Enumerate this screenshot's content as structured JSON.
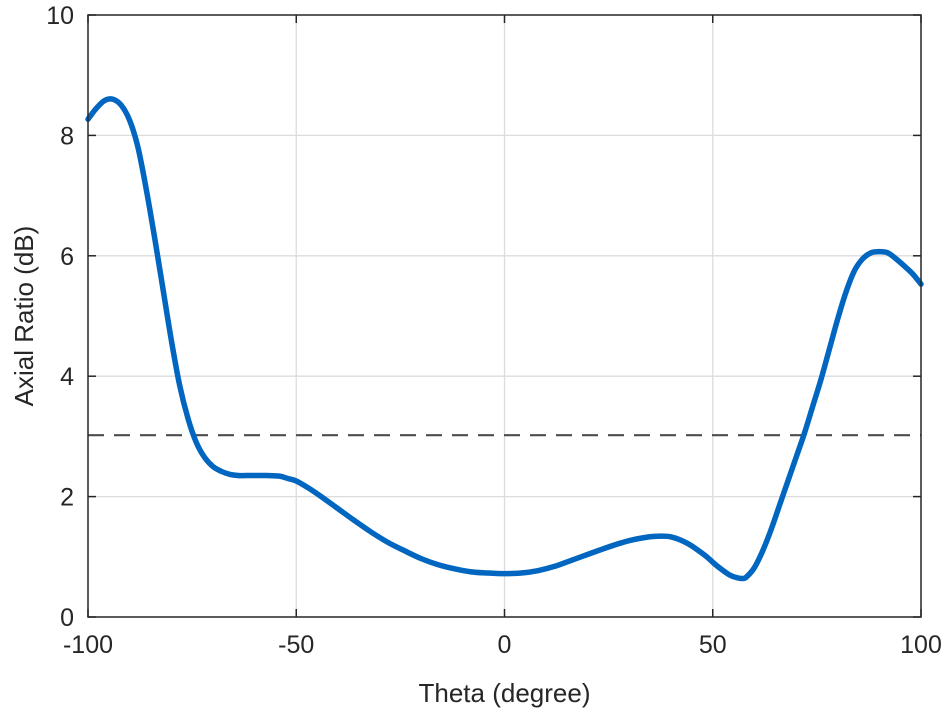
{
  "chart_data": {
    "type": "line",
    "title": "",
    "xlabel": "Theta (degree)",
    "ylabel": "Axial Ratio (dB)",
    "xlim": [
      -100,
      100
    ],
    "ylim": [
      0,
      10
    ],
    "xticks": [
      -100,
      -50,
      0,
      50,
      100
    ],
    "yticks": [
      0,
      2,
      4,
      6,
      8,
      10
    ],
    "xtick_labels": [
      "-100",
      "-50",
      "0",
      "50",
      "100"
    ],
    "ytick_labels": [
      "0",
      "2",
      "4",
      "6",
      "8",
      "10"
    ],
    "grid": true,
    "legend": "none",
    "series": [
      {
        "color": "#0066c0",
        "style": "solid",
        "x": [
          -100,
          -98,
          -96,
          -94,
          -92,
          -90,
          -88,
          -86,
          -84,
          -82,
          -80,
          -78,
          -76,
          -74,
          -72,
          -70,
          -68,
          -66,
          -64,
          -62,
          -60,
          -57,
          -54,
          -52,
          -50,
          -47,
          -44,
          -40,
          -36,
          -32,
          -28,
          -24,
          -20,
          -16,
          -12,
          -8,
          -4,
          0,
          4,
          8,
          12,
          16,
          20,
          24,
          28,
          32,
          36,
          40,
          44,
          48,
          51,
          54,
          56,
          57,
          58,
          60,
          62,
          64,
          66,
          68,
          70,
          72,
          74,
          76,
          78,
          80,
          82,
          84,
          86,
          88,
          90,
          92,
          94,
          96,
          98,
          100
        ],
        "y": [
          8.27,
          8.45,
          8.58,
          8.6,
          8.5,
          8.25,
          7.8,
          7.1,
          6.3,
          5.45,
          4.6,
          3.85,
          3.3,
          2.9,
          2.65,
          2.5,
          2.42,
          2.37,
          2.35,
          2.35,
          2.35,
          2.35,
          2.34,
          2.3,
          2.26,
          2.14,
          2.0,
          1.8,
          1.6,
          1.41,
          1.24,
          1.1,
          0.97,
          0.87,
          0.8,
          0.75,
          0.73,
          0.72,
          0.73,
          0.77,
          0.84,
          0.94,
          1.04,
          1.14,
          1.23,
          1.3,
          1.34,
          1.33,
          1.22,
          1.03,
          0.85,
          0.7,
          0.65,
          0.64,
          0.66,
          0.82,
          1.1,
          1.45,
          1.85,
          2.25,
          2.65,
          3.05,
          3.5,
          3.95,
          4.45,
          4.95,
          5.4,
          5.75,
          5.95,
          6.05,
          6.07,
          6.05,
          5.95,
          5.83,
          5.7,
          5.53
        ]
      },
      {
        "color": "#4d4d4d",
        "style": "dashed",
        "x": [
          -100,
          100
        ],
        "y": [
          3.02,
          3.02
        ]
      }
    ]
  }
}
